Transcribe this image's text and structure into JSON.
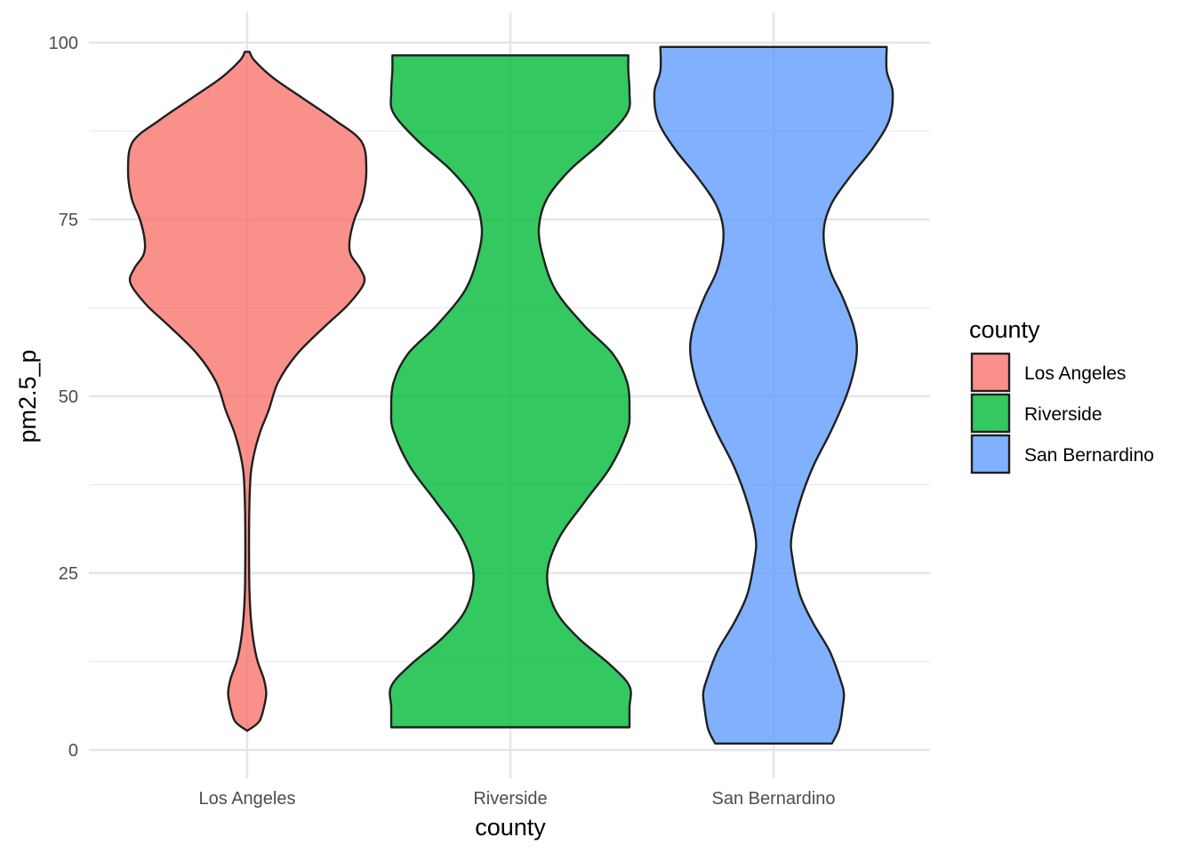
{
  "chart_data": {
    "type": "violin",
    "xlabel": "county",
    "ylabel": "pm2.5_p",
    "ylim": [
      0,
      100
    ],
    "y_ticks": [
      0,
      25,
      50,
      75,
      100
    ],
    "y_tick_labels": [
      "0",
      "25",
      "50",
      "75",
      "100"
    ],
    "grid": true,
    "legend": {
      "title": "county",
      "position": "right"
    },
    "categories": [
      "Los Angeles",
      "Riverside",
      "San Bernardino"
    ],
    "series": [
      {
        "name": "Los Angeles",
        "color": "#F8766D",
        "y_min": 2.7,
        "y_max": 98.7,
        "density_profile": [
          [
            2.7,
            0.0
          ],
          [
            4,
            0.1
          ],
          [
            6,
            0.14
          ],
          [
            8,
            0.16
          ],
          [
            10,
            0.14
          ],
          [
            13,
            0.08
          ],
          [
            17,
            0.04
          ],
          [
            22,
            0.02
          ],
          [
            28,
            0.016
          ],
          [
            34,
            0.018
          ],
          [
            39,
            0.03
          ],
          [
            42,
            0.06
          ],
          [
            45,
            0.11
          ],
          [
            48,
            0.18
          ],
          [
            52,
            0.26
          ],
          [
            56,
            0.42
          ],
          [
            60,
            0.66
          ],
          [
            63,
            0.85
          ],
          [
            66,
            0.98
          ],
          [
            68,
            0.95
          ],
          [
            70,
            0.87
          ],
          [
            72,
            0.86
          ],
          [
            75,
            0.9
          ],
          [
            78,
            0.97
          ],
          [
            82,
            1.0
          ],
          [
            86,
            0.96
          ],
          [
            89,
            0.74
          ],
          [
            92,
            0.48
          ],
          [
            95,
            0.22
          ],
          [
            97.5,
            0.06
          ],
          [
            98.7,
            0.02
          ]
        ]
      },
      {
        "name": "Riverside",
        "color": "#00BA38",
        "y_min": 3.2,
        "y_max": 98.2,
        "density_profile": [
          [
            3.2,
            1.0
          ],
          [
            6,
            1.0
          ],
          [
            9,
            1.0
          ],
          [
            12,
            0.84
          ],
          [
            16,
            0.56
          ],
          [
            20,
            0.37
          ],
          [
            25,
            0.31
          ],
          [
            30,
            0.41
          ],
          [
            35,
            0.62
          ],
          [
            40,
            0.84
          ],
          [
            45,
            0.98
          ],
          [
            48,
            1.0
          ],
          [
            52,
            0.98
          ],
          [
            56,
            0.86
          ],
          [
            60,
            0.62
          ],
          [
            65,
            0.38
          ],
          [
            70,
            0.27
          ],
          [
            74,
            0.24
          ],
          [
            78,
            0.31
          ],
          [
            82,
            0.5
          ],
          [
            86,
            0.77
          ],
          [
            90,
            0.98
          ],
          [
            93,
            1.0
          ],
          [
            96,
            0.99
          ],
          [
            98.2,
            0.99
          ]
        ]
      },
      {
        "name": "San Bernardino",
        "color": "#619CFF",
        "y_min": 0.9,
        "y_max": 99.4,
        "density_profile": [
          [
            0.9,
            0.49
          ],
          [
            3,
            0.55
          ],
          [
            6,
            0.58
          ],
          [
            8,
            0.59
          ],
          [
            10,
            0.56
          ],
          [
            14,
            0.47
          ],
          [
            18,
            0.33
          ],
          [
            22,
            0.22
          ],
          [
            27,
            0.16
          ],
          [
            30,
            0.15
          ],
          [
            35,
            0.22
          ],
          [
            40,
            0.33
          ],
          [
            45,
            0.48
          ],
          [
            50,
            0.61
          ],
          [
            54,
            0.68
          ],
          [
            57,
            0.7
          ],
          [
            60,
            0.67
          ],
          [
            64,
            0.58
          ],
          [
            68,
            0.47
          ],
          [
            73,
            0.42
          ],
          [
            77,
            0.48
          ],
          [
            81,
            0.64
          ],
          [
            85,
            0.83
          ],
          [
            89,
            0.97
          ],
          [
            93,
            1.0
          ],
          [
            96,
            0.95
          ],
          [
            99.4,
            0.95
          ]
        ]
      }
    ]
  }
}
